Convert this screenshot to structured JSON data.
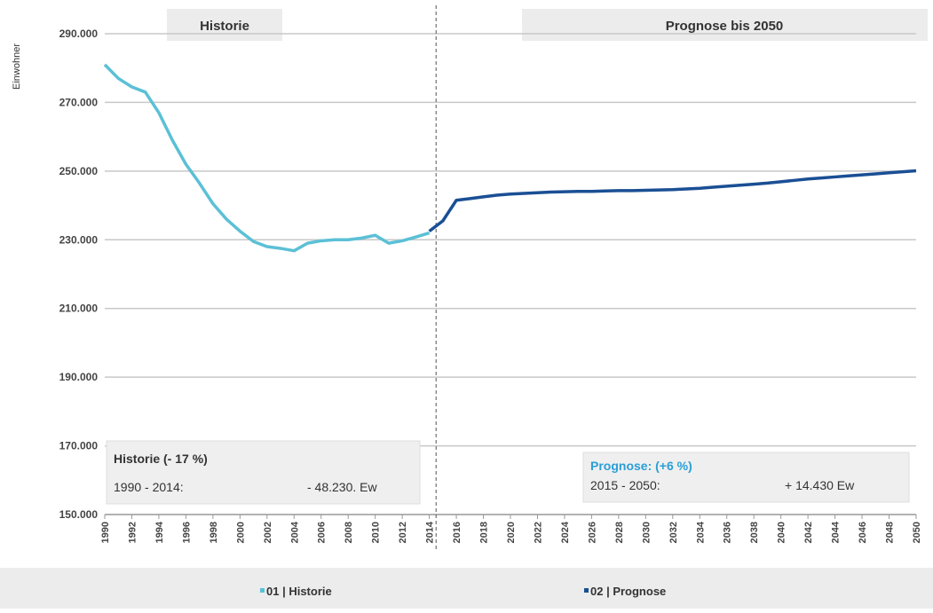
{
  "chart_data": {
    "type": "line",
    "y_label": "Einwohner",
    "header_left": "Historie",
    "header_right": "Prognose bis 2050",
    "annotations": [
      {
        "title": "Historie (- 17 %)",
        "period": "1990 - 2014:",
        "change": "- 48.230. Ew"
      },
      {
        "title": "Prognose: (+6 %)",
        "period": "2015 - 2050:",
        "change": "+ 14.430 Ew"
      }
    ],
    "xlim": [
      1990,
      2050
    ],
    "xticks": [
      1990,
      1992,
      1994,
      1996,
      1998,
      2000,
      2002,
      2004,
      2006,
      2008,
      2010,
      2012,
      2014,
      2016,
      2018,
      2020,
      2022,
      2024,
      2026,
      2028,
      2030,
      2032,
      2034,
      2036,
      2038,
      2040,
      2042,
      2044,
      2046,
      2048,
      2050
    ],
    "ylim": [
      150000,
      290000
    ],
    "yticks": [
      {
        "value": 150000,
        "label": "150.000"
      },
      {
        "value": 170000,
        "label": "170.000"
      },
      {
        "value": 190000,
        "label": "190.000"
      },
      {
        "value": 210000,
        "label": "210.000"
      },
      {
        "value": 230000,
        "label": "230.000"
      },
      {
        "value": 250000,
        "label": "250.000"
      },
      {
        "value": 270000,
        "label": "270.000"
      },
      {
        "value": 290000,
        "label": "290.000"
      }
    ],
    "grid": true,
    "series": [
      {
        "name": "01 | Historie",
        "color": "#5bc0d6",
        "x": [
          1990,
          1991,
          1992,
          1993,
          1994,
          1995,
          1996,
          1997,
          1998,
          1999,
          2000,
          2001,
          2002,
          2003,
          2004,
          2005,
          2006,
          2007,
          2008,
          2009,
          2010,
          2011,
          2012,
          2013,
          2014
        ],
        "values": [
          281000,
          277000,
          274500,
          273000,
          267000,
          259000,
          252000,
          246500,
          240500,
          236000,
          232500,
          229500,
          228000,
          227500,
          226800,
          229000,
          229700,
          230000,
          230000,
          230500,
          231300,
          229000,
          229700,
          230800,
          232000
        ]
      },
      {
        "name": "02 | Prognose",
        "color": "#1a4f94",
        "x": [
          2014,
          2015,
          2016,
          2017,
          2018,
          2019,
          2020,
          2021,
          2022,
          2023,
          2024,
          2025,
          2026,
          2027,
          2028,
          2029,
          2030,
          2031,
          2032,
          2033,
          2034,
          2035,
          2036,
          2037,
          2038,
          2039,
          2040,
          2041,
          2042,
          2043,
          2044,
          2045,
          2046,
          2047,
          2048,
          2049,
          2050
        ],
        "values": [
          232500,
          235500,
          241500,
          242000,
          242500,
          243000,
          243300,
          243500,
          243700,
          243900,
          244000,
          244100,
          244100,
          244200,
          244300,
          244300,
          244400,
          244500,
          244600,
          244800,
          245000,
          245300,
          245600,
          245900,
          246200,
          246500,
          246900,
          247300,
          247700,
          248000,
          248300,
          248600,
          248900,
          249200,
          249500,
          249800,
          250100
        ]
      }
    ]
  }
}
